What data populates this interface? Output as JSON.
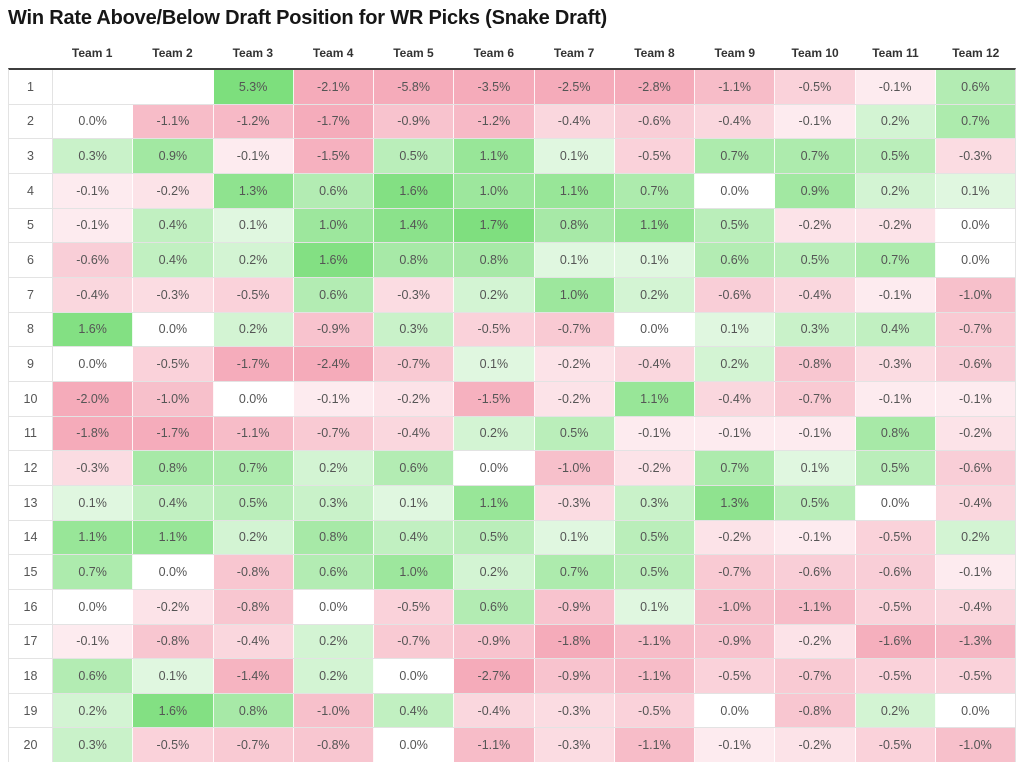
{
  "title": "Win Rate Above/Below Draft Position for WR Picks (Snake Draft)",
  "colors": {
    "positive_cap": "#7ddf7d",
    "negative_cap": "#f5abba",
    "zero": "#ffffff",
    "cell_text": "#555555",
    "header_text": "#333333",
    "title_text": "#161616",
    "grid_line": "#e3e3e3",
    "top_border": "#3d3d3d"
  },
  "chart_data": {
    "type": "heatmap",
    "title": "Win Rate Above/Below Draft Position for WR Picks (Snake Draft)",
    "xlabel": "",
    "ylabel": "",
    "unit": "%",
    "value_format": "one_decimal_percent",
    "legend": "none",
    "color_scale": {
      "negative": "#f5abba",
      "zero": "#ffffff",
      "positive": "#7ddf7d",
      "cap_abs": 1.75,
      "easing": "sqrt"
    },
    "columns": [
      "Team 1",
      "Team 2",
      "Team 3",
      "Team 4",
      "Team 5",
      "Team 6",
      "Team 7",
      "Team 8",
      "Team 9",
      "Team 10",
      "Team 11",
      "Team 12"
    ],
    "rows": [
      "1",
      "2",
      "3",
      "4",
      "5",
      "6",
      "7",
      "8",
      "9",
      "10",
      "11",
      "12",
      "13",
      "14",
      "15",
      "16",
      "17",
      "18",
      "19",
      "20"
    ],
    "values": [
      [
        null,
        null,
        5.3,
        -2.1,
        -5.8,
        -3.5,
        -2.5,
        -2.8,
        -1.1,
        -0.5,
        -0.1,
        0.6
      ],
      [
        0.0,
        -1.1,
        -1.2,
        -1.7,
        -0.9,
        -1.2,
        -0.4,
        -0.6,
        -0.4,
        -0.1,
        0.2,
        0.7
      ],
      [
        0.3,
        0.9,
        -0.1,
        -1.5,
        0.5,
        1.1,
        0.1,
        -0.5,
        0.7,
        0.7,
        0.5,
        -0.3
      ],
      [
        -0.1,
        -0.2,
        1.3,
        0.6,
        1.6,
        1.0,
        1.1,
        0.7,
        0.0,
        0.9,
        0.2,
        0.1
      ],
      [
        -0.1,
        0.4,
        0.1,
        1.0,
        1.4,
        1.7,
        0.8,
        1.1,
        0.5,
        -0.2,
        -0.2,
        0.0
      ],
      [
        -0.6,
        0.4,
        0.2,
        1.6,
        0.8,
        0.8,
        0.1,
        0.1,
        0.6,
        0.5,
        0.7,
        0.0
      ],
      [
        -0.4,
        -0.3,
        -0.5,
        0.6,
        -0.3,
        0.2,
        1.0,
        0.2,
        -0.6,
        -0.4,
        -0.1,
        -1.0
      ],
      [
        1.6,
        0.0,
        0.2,
        -0.9,
        0.3,
        -0.5,
        -0.7,
        0.0,
        0.1,
        0.3,
        0.4,
        -0.7
      ],
      [
        0.0,
        -0.5,
        -1.7,
        -2.4,
        -0.7,
        0.1,
        -0.2,
        -0.4,
        0.2,
        -0.8,
        -0.3,
        -0.6
      ],
      [
        -2.0,
        -1.0,
        0.0,
        -0.1,
        -0.2,
        -1.5,
        -0.2,
        1.1,
        -0.4,
        -0.7,
        -0.1,
        -0.1
      ],
      [
        -1.8,
        -1.7,
        -1.1,
        -0.7,
        -0.4,
        0.2,
        0.5,
        -0.1,
        -0.1,
        -0.1,
        0.8,
        -0.2
      ],
      [
        -0.3,
        0.8,
        0.7,
        0.2,
        0.6,
        0.0,
        -1.0,
        -0.2,
        0.7,
        0.1,
        0.5,
        -0.6
      ],
      [
        0.1,
        0.4,
        0.5,
        0.3,
        0.1,
        1.1,
        -0.3,
        0.3,
        1.3,
        0.5,
        0.0,
        -0.4
      ],
      [
        1.1,
        1.1,
        0.2,
        0.8,
        0.4,
        0.5,
        0.1,
        0.5,
        -0.2,
        -0.1,
        -0.5,
        0.2
      ],
      [
        0.7,
        0.0,
        -0.8,
        0.6,
        1.0,
        0.2,
        0.7,
        0.5,
        -0.7,
        -0.6,
        -0.6,
        -0.1
      ],
      [
        0.0,
        -0.2,
        -0.8,
        0.0,
        -0.5,
        0.6,
        -0.9,
        0.1,
        -1.0,
        -1.1,
        -0.5,
        -0.4
      ],
      [
        -0.1,
        -0.8,
        -0.4,
        0.2,
        -0.7,
        -0.9,
        -1.8,
        -1.1,
        -0.9,
        -0.2,
        -1.6,
        -1.3
      ],
      [
        0.6,
        0.1,
        -1.4,
        0.2,
        0.0,
        -2.7,
        -0.9,
        -1.1,
        -0.5,
        -0.7,
        -0.5,
        -0.5
      ],
      [
        0.2,
        1.6,
        0.8,
        -1.0,
        0.4,
        -0.4,
        -0.3,
        -0.5,
        0.0,
        -0.8,
        0.2,
        0.0
      ],
      [
        0.3,
        -0.5,
        -0.7,
        -0.8,
        0.0,
        -1.1,
        -0.3,
        -1.1,
        -0.1,
        -0.2,
        -0.5,
        -1.0
      ]
    ]
  }
}
